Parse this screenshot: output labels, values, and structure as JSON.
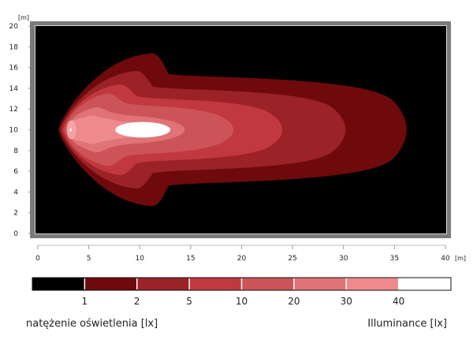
{
  "chart_data": {
    "type": "heatmap",
    "subtype": "isolux contour plot",
    "title": "",
    "xlabel": "[m]",
    "ylabel": "[m]",
    "xlim": [
      0,
      40
    ],
    "ylim": [
      0,
      20
    ],
    "x_ticks": [
      "0",
      "5",
      "10",
      "15",
      "20",
      "25",
      "30",
      "35",
      "40"
    ],
    "y_ticks": [
      "0",
      "2",
      "4",
      "6",
      "8",
      "10",
      "12",
      "14",
      "16",
      "18",
      "20"
    ],
    "grid": false,
    "source_position_m": {
      "x": 3.3,
      "y": 10
    },
    "peak_region_m": {
      "x_center": 10.3,
      "y_center": 10,
      "half_length": 2.7,
      "half_width": 0.75
    },
    "contours_lx": [
      {
        "level": 1,
        "x_extent_m": [
          2.0,
          36.2
        ],
        "y_extent_m": [
          2.5,
          17.5
        ],
        "color": "#6e0a0c"
      },
      {
        "level": 2,
        "x_extent_m": [
          2.2,
          30.2
        ],
        "y_extent_m": [
          4.2,
          15.8
        ],
        "color": "#9b2227"
      },
      {
        "level": 5,
        "x_extent_m": [
          2.4,
          24.0
        ],
        "y_extent_m": [
          5.5,
          14.5
        ],
        "color": "#c1393e"
      },
      {
        "level": 10,
        "x_extent_m": [
          2.6,
          19.2
        ],
        "y_extent_m": [
          6.4,
          13.6
        ],
        "color": "#cc5458"
      },
      {
        "level": 20,
        "x_extent_m": [
          2.9,
          14.4
        ],
        "y_extent_m": [
          7.7,
          12.3
        ],
        "color": "#df7376"
      },
      {
        "level": 30,
        "x_extent_m": [
          3.0,
          12.5
        ],
        "y_extent_m": [
          8.5,
          11.5
        ],
        "color": "#ee8a8d"
      },
      {
        "level": 40,
        "x_extent_m": [
          7.6,
          13.0
        ],
        "y_extent_m": [
          9.25,
          10.75
        ],
        "color": "#ffffff"
      }
    ],
    "legend": {
      "position": "bottom",
      "type": "colorbar",
      "ticks": [
        "1",
        "2",
        "5",
        "10",
        "20",
        "30",
        "40"
      ],
      "bins": [
        {
          "range": "<1",
          "color": "#000000"
        },
        {
          "range": "1-2",
          "color": "#6e0a0c"
        },
        {
          "range": "2-5",
          "color": "#9b2227"
        },
        {
          "range": "5-10",
          "color": "#c1393e"
        },
        {
          "range": "10-20",
          "color": "#cc5458"
        },
        {
          "range": "20-30",
          "color": "#df7376"
        },
        {
          "range": "30-40",
          "color": "#ee8a8d"
        },
        {
          "range": ">40",
          "color": "#ffffff"
        }
      ]
    },
    "background_color": "#000000"
  },
  "axes": {
    "x_unit": "[m]",
    "y_unit": "[m]"
  },
  "legend_text": {
    "caption_pl": "natężenie oświetlenia [lx]",
    "caption_en": "Illuminance [lx]"
  }
}
